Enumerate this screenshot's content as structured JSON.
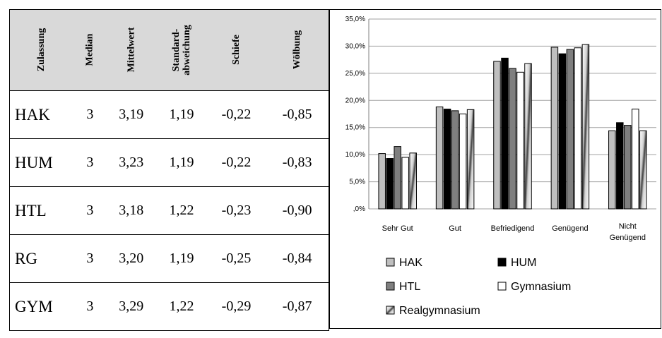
{
  "table": {
    "headers": [
      "Zulassung",
      "Median",
      "Mittelwert",
      "Standard-\nabweichung",
      "Schiefe",
      "Wölbung"
    ],
    "rows": [
      {
        "name": "HAK",
        "values": [
          "3",
          "3,19",
          "1,19",
          "-0,22",
          "-0,85"
        ]
      },
      {
        "name": "HUM",
        "values": [
          "3",
          "3,23",
          "1,19",
          "-0,22",
          "-0,83"
        ]
      },
      {
        "name": "HTL",
        "values": [
          "3",
          "3,18",
          "1,22",
          "-0,23",
          "-0,90"
        ]
      },
      {
        "name": "RG",
        "values": [
          "3",
          "3,20",
          "1,19",
          "-0,25",
          "-0,84"
        ]
      },
      {
        "name": "GYM",
        "values": [
          "3",
          "3,29",
          "1,22",
          "-0,29",
          "-0,87"
        ]
      }
    ]
  },
  "chart_data": {
    "type": "bar",
    "title": "",
    "xlabel": "",
    "ylabel": "",
    "categories": [
      "Sehr Gut",
      "Gut",
      "Befriedigend",
      "Genügend",
      "Nicht\nGenügend"
    ],
    "ylim": [
      0,
      35
    ],
    "yticks": [
      0,
      5,
      10,
      15,
      20,
      25,
      30,
      35
    ],
    "ytick_labels": [
      ",0%",
      "5,0%",
      "10,0%",
      "15,0%",
      "20,0%",
      "25,0%",
      "30,0%",
      "35,0%"
    ],
    "grid": true,
    "legend_position": "bottom",
    "series": [
      {
        "name": "HAK",
        "values": [
          10.2,
          18.8,
          27.2,
          29.8,
          14.4
        ],
        "color": "#bfbfbf",
        "pattern": "solid"
      },
      {
        "name": "HUM",
        "values": [
          9.3,
          18.4,
          27.8,
          28.6,
          15.9
        ],
        "color": "#000000",
        "pattern": "solid"
      },
      {
        "name": "HTL",
        "values": [
          11.5,
          18.1,
          25.9,
          29.4,
          15.4
        ],
        "color": "#7f7f7f",
        "pattern": "solid"
      },
      {
        "name": "Gymnasium",
        "values": [
          9.5,
          17.5,
          25.2,
          29.7,
          18.4
        ],
        "color": "#ffffff",
        "pattern": "solid"
      },
      {
        "name": "Realgymnasium",
        "values": [
          10.3,
          18.3,
          26.8,
          30.3,
          14.4
        ],
        "color": "#8c8c8c",
        "pattern": "gradient"
      }
    ]
  }
}
